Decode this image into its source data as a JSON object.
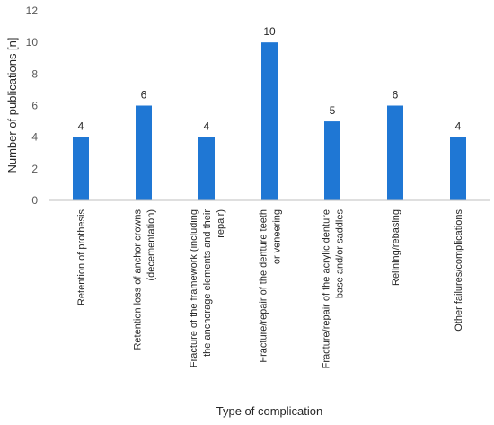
{
  "chart_data": {
    "type": "bar",
    "categories": [
      [
        "Retention of prothesis"
      ],
      [
        "Retention loss of anchor crowns",
        "(decementation)"
      ],
      [
        "Fracture of the framework (including",
        "the anchorage elements and their",
        "repair)"
      ],
      [
        "Fracture/repair of the denture teeth",
        "or veneering"
      ],
      [
        "Fracture/repair of the acrylic denture",
        "base and/or saddles"
      ],
      [
        "Relining/rebasing"
      ],
      [
        "Other failures/complications"
      ]
    ],
    "values": [
      4,
      6,
      4,
      10,
      5,
      6,
      4
    ],
    "xlabel": "Type of complication",
    "ylabel": "Number of publications [n]",
    "ylim": [
      0,
      12
    ],
    "yticks": [
      0,
      2,
      4,
      6,
      8,
      10,
      12
    ],
    "grid": false,
    "legend": "none",
    "bar_color": "#1f77d4"
  }
}
